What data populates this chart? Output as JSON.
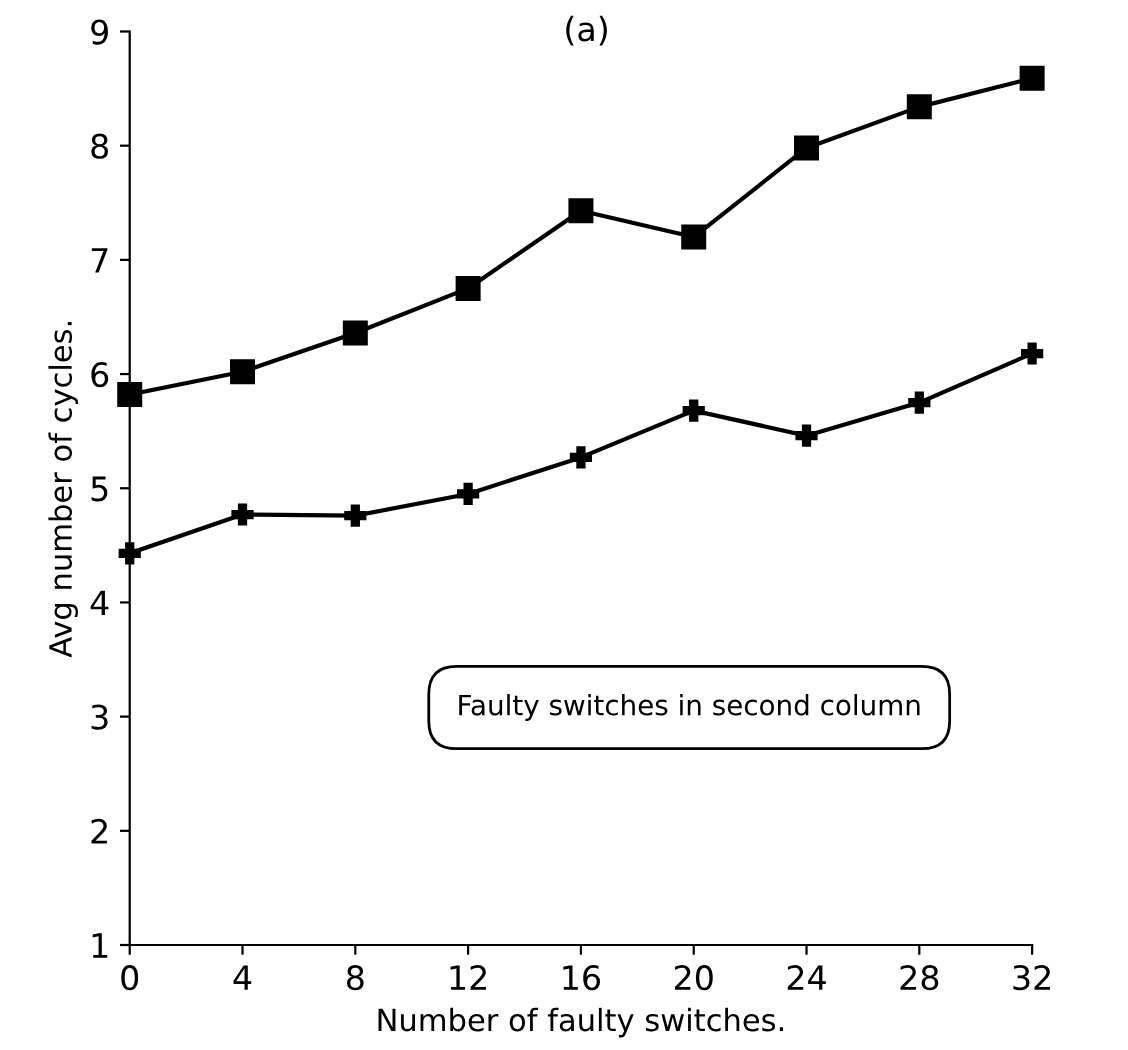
{
  "chart_data": {
    "type": "line",
    "title": "(a)",
    "xlabel": "Number of faulty switches.",
    "ylabel": "Avg number of cycles.",
    "x": [
      0,
      4,
      8,
      12,
      16,
      20,
      24,
      28,
      32
    ],
    "series": [
      {
        "color": "#000000",
        "marker": "square",
        "values": [
          5.82,
          6.02,
          6.36,
          6.75,
          7.43,
          7.2,
          7.98,
          8.34,
          8.59
        ]
      },
      {
        "color": "#000000",
        "marker": "cross",
        "values": [
          4.43,
          4.77,
          4.76,
          4.95,
          5.27,
          5.68,
          5.46,
          5.75,
          6.18
        ]
      }
    ],
    "xlim": [
      0,
      32
    ],
    "ylim": [
      1,
      9
    ],
    "xticks": [
      0,
      4,
      8,
      12,
      16,
      20,
      24,
      28,
      32
    ],
    "yticks": [
      1,
      2,
      3,
      4,
      5,
      6,
      7,
      8,
      9
    ],
    "grid": false,
    "legend": false,
    "line_style": "solid",
    "annotations": [
      "Faulty switches in second column"
    ]
  }
}
